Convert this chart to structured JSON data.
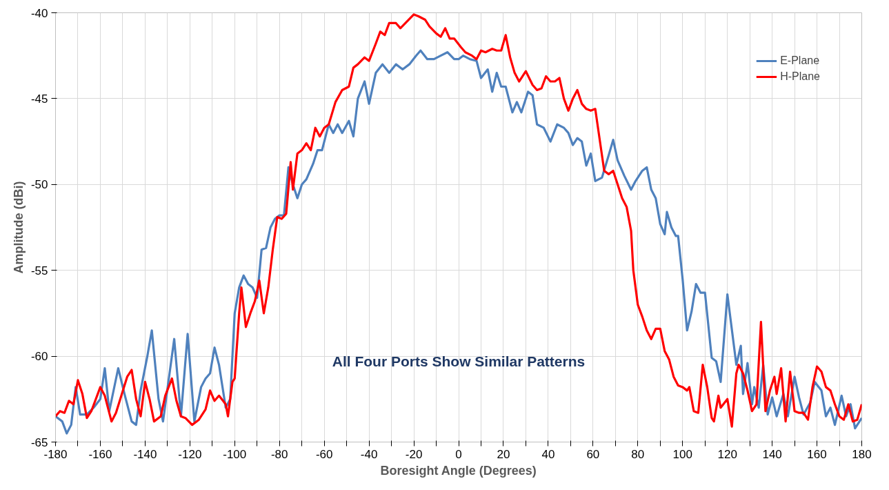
{
  "chart_data": {
    "type": "line",
    "xlabel": "Boresight Angle (Degrees)",
    "ylabel": "Amplitude (dBi)",
    "annotations": [
      "All Four Ports Show Similar Patterns"
    ],
    "xlim": [
      -180,
      180
    ],
    "ylim": [
      -65,
      -40
    ],
    "xticks": [
      -180,
      {
        "value": -170,
        "label": null
      },
      -160,
      {
        "value": -150,
        "label": null
      },
      -140,
      {
        "value": -130,
        "label": null
      },
      -120,
      {
        "value": -110,
        "label": null
      },
      -100,
      {
        "value": -90,
        "label": null
      },
      -80,
      {
        "value": -70,
        "label": null
      },
      -60,
      {
        "value": -50,
        "label": null
      },
      -40,
      {
        "value": -30,
        "label": null
      },
      -20,
      {
        "value": -10,
        "label": null
      },
      0,
      {
        "value": 10,
        "label": null
      },
      20,
      {
        "value": 30,
        "label": null
      },
      40,
      {
        "value": 50,
        "label": null
      },
      60,
      {
        "value": 70,
        "label": null
      },
      80,
      {
        "value": 90,
        "label": null
      },
      100,
      {
        "value": 110,
        "label": null
      },
      120,
      {
        "value": 130,
        "label": null
      },
      140,
      {
        "value": 150,
        "label": null
      },
      160,
      {
        "value": 170,
        "label": null
      },
      180
    ],
    "yticks": [
      -65,
      -60,
      -55,
      -50,
      -45,
      -40
    ],
    "grid": true,
    "legend": "top right",
    "marker": "none",
    "line_style": "solid",
    "series": [
      {
        "name": "E-Plane",
        "color": "#4f81bd",
        "x": [
          -180,
          -177,
          -175,
          -173,
          -171,
          -169,
          -166,
          -163,
          -160,
          -158,
          -156,
          -152,
          -149,
          -146,
          -144,
          -142,
          -139,
          -137,
          -134,
          -132,
          -127,
          -124,
          -121,
          -118,
          -115,
          -113,
          -111,
          -109,
          -107,
          -104,
          -102,
          -100,
          -98,
          -96,
          -94,
          -92,
          -90,
          -88,
          -86,
          -84,
          -82,
          -80,
          -78,
          -76,
          -74,
          -72,
          -70,
          -68,
          -65,
          -63,
          -61,
          -58,
          -56,
          -54,
          -52,
          -49,
          -47,
          -45,
          -42,
          -40,
          -37,
          -34,
          -31,
          -28,
          -25,
          -22,
          -19,
          -17,
          -14,
          -11,
          -8,
          -5,
          -2,
          0,
          2,
          5,
          8,
          10,
          13,
          15,
          17,
          19,
          21,
          24,
          26,
          28,
          31,
          33,
          35,
          38,
          41,
          44,
          47,
          49,
          51,
          53,
          55,
          57,
          59,
          61,
          64,
          67,
          69,
          71,
          74,
          77,
          79,
          82,
          84,
          86,
          88,
          90,
          92,
          93,
          95,
          97,
          98,
          100,
          102,
          104,
          106,
          108,
          110,
          113,
          115,
          117,
          120,
          124,
          126,
          127,
          129,
          131,
          132,
          134,
          136,
          138,
          140,
          142,
          145,
          147,
          150,
          152,
          154,
          157,
          159,
          162,
          164,
          166,
          168,
          171,
          173,
          175,
          177,
          180
        ],
        "values": [
          -63.5,
          -63.8,
          -64.5,
          -64,
          -61.8,
          -63.4,
          -63.4,
          -63,
          -62.5,
          -60.7,
          -63.2,
          -60.7,
          -62.3,
          -63.8,
          -64,
          -62,
          -60,
          -58.5,
          -62.5,
          -63.8,
          -59,
          -63.5,
          -58.7,
          -63.8,
          -61.8,
          -61.3,
          -61,
          -59.5,
          -60.5,
          -63,
          -62.5,
          -57.5,
          -56,
          -55.3,
          -55.8,
          -56,
          -56.6,
          -53.8,
          -53.7,
          -52.5,
          -52,
          -51.8,
          -51.8,
          -49,
          -50,
          -50.8,
          -50,
          -49.7,
          -48.8,
          -48,
          -48,
          -46.5,
          -47,
          -46.5,
          -47,
          -46.3,
          -47.2,
          -45,
          -44,
          -45.3,
          -43.5,
          -43,
          -43.5,
          -43,
          -43.3,
          -43,
          -42.5,
          -42.2,
          -42.7,
          -42.7,
          -42.5,
          -42.3,
          -42.7,
          -42.7,
          -42.5,
          -42.7,
          -42.8,
          -43.8,
          -43.3,
          -44.6,
          -43.5,
          -44.3,
          -44.3,
          -45.8,
          -45.2,
          -45.8,
          -44.6,
          -44.8,
          -46.5,
          -46.7,
          -47.5,
          -46.5,
          -46.7,
          -47,
          -47.7,
          -47.3,
          -47.5,
          -48.9,
          -48.2,
          -49.8,
          -49.6,
          -48.3,
          -47.4,
          -48.6,
          -49.5,
          -50.3,
          -49.8,
          -49.2,
          -49,
          -50.3,
          -50.8,
          -52.3,
          -52.9,
          -51.6,
          -52.5,
          -53,
          -53,
          -55.5,
          -58.5,
          -57.4,
          -55.8,
          -56.3,
          -56.3,
          -60.1,
          -60.3,
          -61.5,
          -56.4,
          -60.5,
          -59.4,
          -62.2,
          -60.4,
          -62.8,
          -61.8,
          -63,
          -60.5,
          -63.4,
          -62.4,
          -63.5,
          -62.2,
          -63.5,
          -61.2,
          -62.4,
          -63.4,
          -62.7,
          -61.5,
          -62,
          -63.5,
          -63,
          -64,
          -62.3,
          -63.5,
          -62.8,
          -64.2,
          -63.6
        ]
      },
      {
        "name": "H-Plane",
        "color": "#ff0000",
        "x": [
          -180,
          -178,
          -176,
          -174,
          -172,
          -170,
          -168,
          -166,
          -164,
          -160,
          -158,
          -155,
          -153,
          -148,
          -146,
          -144,
          -142,
          -140,
          -138,
          -136,
          -133,
          -131,
          -128,
          -126,
          -124,
          -122,
          -119,
          -116,
          -113,
          -111,
          -109,
          -107,
          -104,
          -103,
          -101,
          -100,
          -98,
          -97,
          -95,
          -93,
          -91,
          -89,
          -87,
          -85,
          -83,
          -81,
          -79,
          -77,
          -75,
          -74,
          -72,
          -70,
          -68,
          -66,
          -64,
          -62,
          -60,
          -58,
          -55,
          -52,
          -49,
          -47,
          -45,
          -42,
          -40,
          -37,
          -35,
          -33,
          -31,
          -28,
          -26,
          -23,
          -20,
          -18,
          -15,
          -13,
          -10,
          -8,
          -6,
          -4,
          -2,
          1,
          3,
          6,
          8,
          10,
          12,
          15,
          17,
          19,
          21,
          23,
          25,
          27,
          30,
          33,
          35,
          37,
          39,
          41,
          43,
          45,
          47,
          49,
          51,
          53,
          55,
          57,
          59,
          61,
          63,
          65,
          67,
          69,
          71,
          73,
          75,
          77,
          78,
          80,
          82,
          84,
          86,
          88,
          90,
          92,
          94,
          96,
          98,
          100,
          102,
          103,
          105,
          107,
          109,
          111,
          113,
          114,
          116,
          117,
          120,
          122,
          124,
          125,
          127,
          129,
          131,
          133,
          135,
          137,
          139,
          141,
          142,
          144,
          146,
          148,
          150,
          152,
          154,
          156,
          158,
          160,
          162,
          164,
          166,
          168,
          170,
          172,
          174,
          176,
          178,
          180
        ],
        "values": [
          -63.5,
          -63.2,
          -63.3,
          -62.6,
          -62.8,
          -61.4,
          -62.2,
          -63.6,
          -63.2,
          -61.8,
          -62.3,
          -63.8,
          -63.3,
          -61.2,
          -60.8,
          -62.5,
          -63.5,
          -61.5,
          -62.5,
          -63.8,
          -63.5,
          -62.3,
          -61.3,
          -62.6,
          -63.5,
          -63.6,
          -64,
          -63.7,
          -63.1,
          -62,
          -62.6,
          -62.3,
          -62.8,
          -63.5,
          -61.5,
          -61.3,
          -57.5,
          -56,
          -58.3,
          -57.5,
          -56.8,
          -55.6,
          -57.5,
          -56,
          -53.8,
          -51.9,
          -52,
          -51.7,
          -48.7,
          -50.3,
          -48.2,
          -48,
          -47.6,
          -48,
          -46.7,
          -47.2,
          -46.7,
          -46.5,
          -45.2,
          -44.5,
          -44.3,
          -43.2,
          -43,
          -42.6,
          -42.8,
          -41.8,
          -41.1,
          -41.3,
          -40.6,
          -40.6,
          -40.9,
          -40.5,
          -40.1,
          -40.2,
          -40.4,
          -40.8,
          -41.2,
          -41.4,
          -40.9,
          -41.5,
          -41.5,
          -42,
          -42.3,
          -42.5,
          -42.7,
          -42.2,
          -42.3,
          -42.1,
          -42.2,
          -42.2,
          -41.3,
          -42.6,
          -43.5,
          -44,
          -43.4,
          -44.2,
          -44.5,
          -44.4,
          -43.7,
          -44,
          -44,
          -43.8,
          -45,
          -45.7,
          -45,
          -44.5,
          -45.3,
          -45.6,
          -45.7,
          -45.6,
          -47.4,
          -49.2,
          -49.4,
          -49.2,
          -50,
          -50.8,
          -51.3,
          -52.7,
          -55,
          -57,
          -57.7,
          -58.5,
          -59,
          -58.4,
          -58.4,
          -59.7,
          -60.2,
          -61.2,
          -61.7,
          -61.8,
          -62,
          -61.8,
          -63.2,
          -63.3,
          -60.5,
          -61.8,
          -63.6,
          -63.8,
          -62.3,
          -63,
          -62.5,
          -64.1,
          -61,
          -60.5,
          -61,
          -62,
          -63.2,
          -62.8,
          -58,
          -63.2,
          -62,
          -61.2,
          -62.2,
          -60.7,
          -63.8,
          -60.9,
          -63.2,
          -63.3,
          -63.3,
          -63.7,
          -61.8,
          -60.6,
          -60.9,
          -61.8,
          -62,
          -62.8,
          -63.5,
          -63.7,
          -62.8,
          -63.8,
          -63.7,
          -62.8
        ]
      }
    ]
  }
}
